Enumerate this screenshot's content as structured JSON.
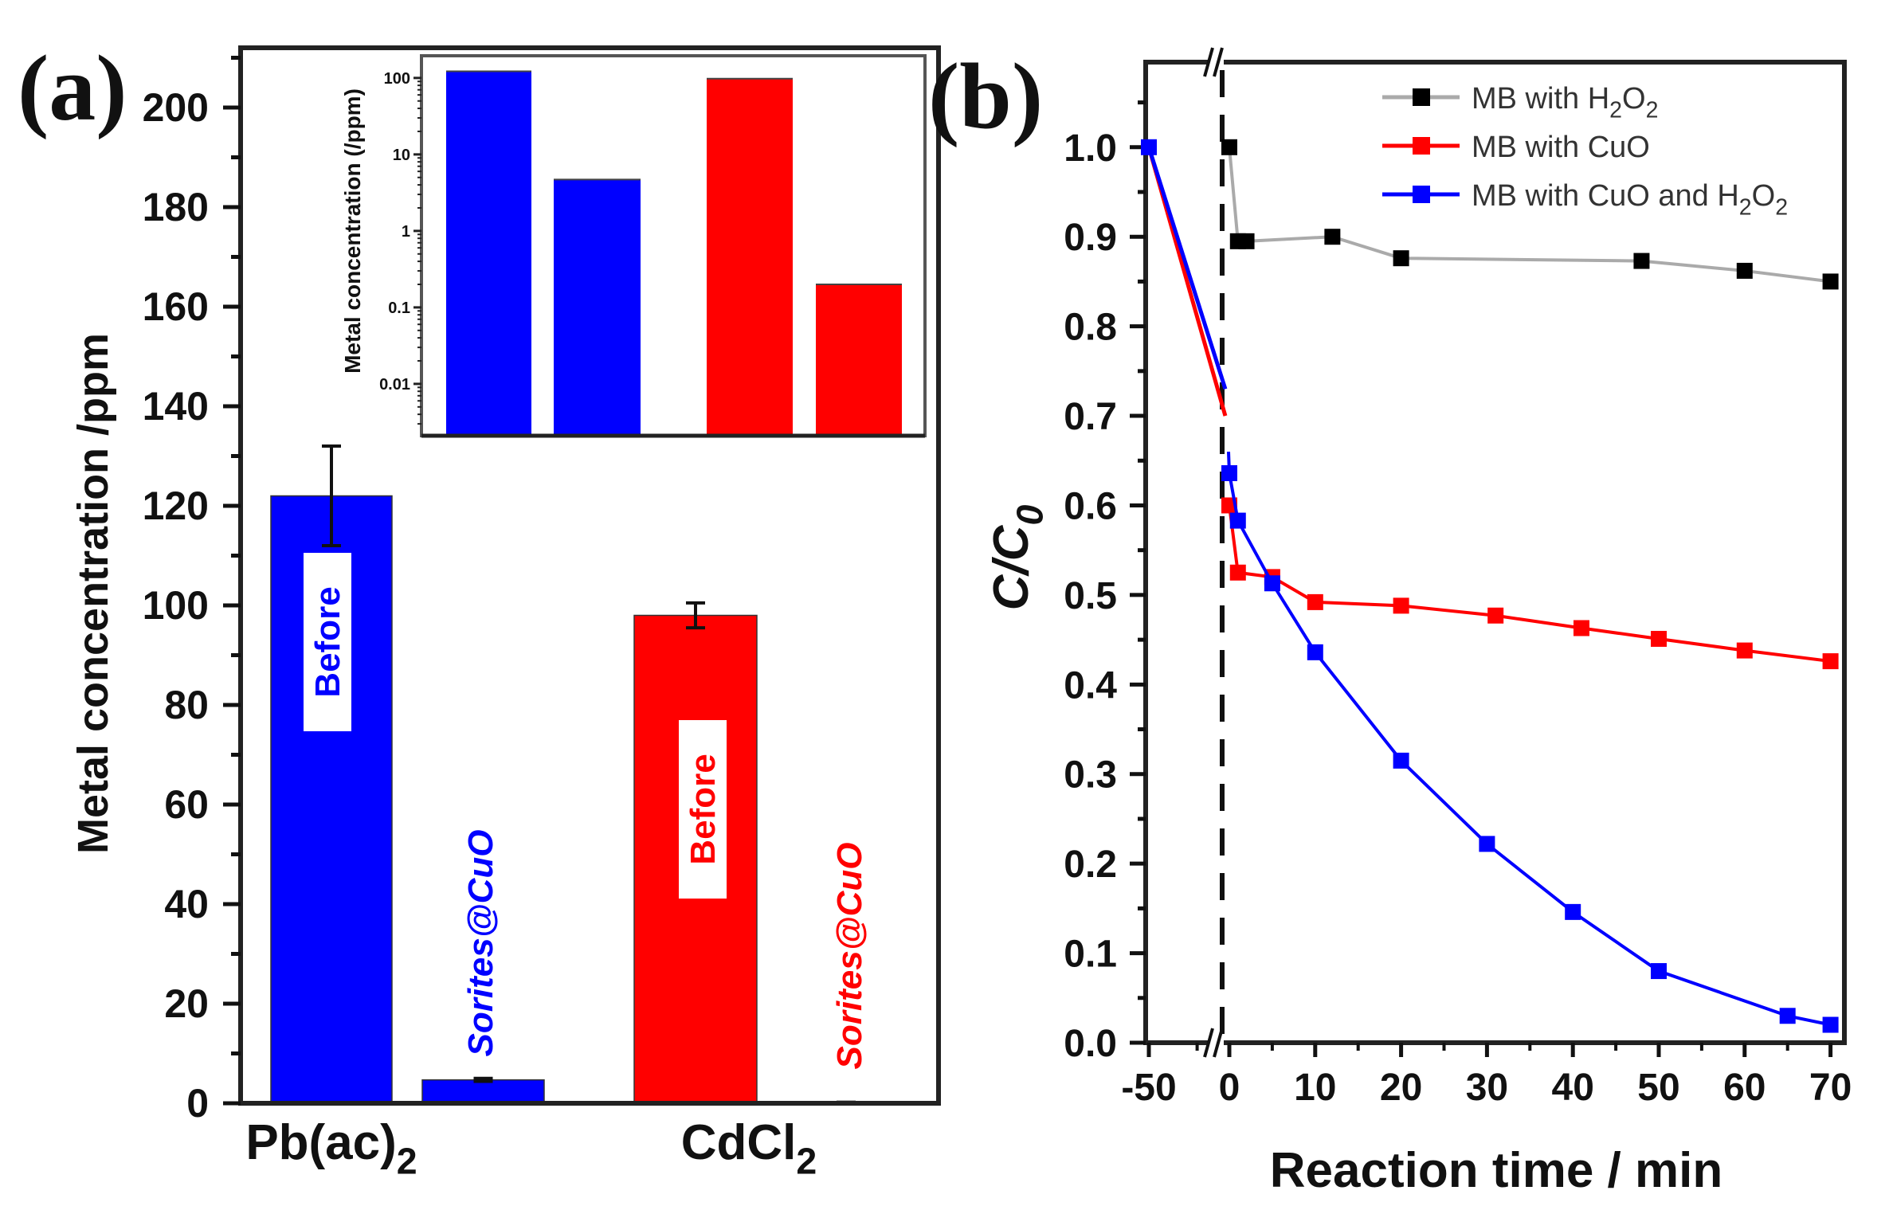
{
  "chart_data": [
    {
      "panel_label": "(a)",
      "type": "bar",
      "ylabel": "Metal concentration /ppm",
      "ylim": [
        0,
        212
      ],
      "yticks": [
        0,
        20,
        40,
        60,
        80,
        100,
        120,
        140,
        160,
        180,
        200
      ],
      "categories": [
        {
          "parts": [
            {
              "t": "Pb(ac)"
            },
            {
              "t": "2",
              "sub": true
            }
          ]
        },
        {
          "parts": [
            {
              "t": "CdCl"
            },
            {
              "t": "2",
              "sub": true
            }
          ]
        }
      ],
      "bars": [
        {
          "group": 0,
          "label": "Before",
          "value": 122,
          "error": 10,
          "color": "#0000ff",
          "label_style": "boxed"
        },
        {
          "group": 0,
          "label": "Sorites@CuO",
          "value": 4.7,
          "error": 0.3,
          "color": "#0000ff",
          "label_style": "italic"
        },
        {
          "group": 1,
          "label": "Before",
          "value": 98,
          "error": 2.5,
          "color": "#ff0000",
          "label_style": "boxed"
        },
        {
          "group": 1,
          "label": "Sorites@CuO",
          "value": 0.2,
          "error": 0.01,
          "color": "#ff0000",
          "label_style": "italic"
        }
      ],
      "inset": {
        "type": "bar",
        "yscale": "log",
        "ylabel": "Metal concentration (/ppm)",
        "ylim": [
          0.0021,
          195
        ],
        "yticks": [
          {
            "v": 0.01,
            "label": "0.01"
          },
          {
            "v": 0.1,
            "label": "0.1"
          },
          {
            "v": 1,
            "label": "1"
          },
          {
            "v": 10,
            "label": "10"
          },
          {
            "v": 100,
            "label": "100"
          }
        ]
      }
    },
    {
      "panel_label": "(b)",
      "type": "line",
      "xlabel": "Reaction time / min",
      "ylabel": {
        "parts": [
          {
            "t": "C/C"
          },
          {
            "t": "0",
            "sub": true
          }
        ]
      },
      "ylim": [
        0,
        1.095
      ],
      "yticks": [
        "0.0",
        "0.1",
        "0.2",
        "0.3",
        "0.4",
        "0.5",
        "0.6",
        "0.7",
        "0.8",
        "0.9",
        "1.0"
      ],
      "xticks": [
        "-50",
        "0",
        "10",
        "20",
        "30",
        "40",
        "50",
        "60",
        "70"
      ],
      "axis_break": "between -50 and 0",
      "dark_dashed_line_at": 0,
      "legend_position": "top-right",
      "series": [
        {
          "name": {
            "parts": [
              {
                "t": "MB with H"
              },
              {
                "t": "2",
                "sub": true
              },
              {
                "t": "O"
              },
              {
                "t": "2",
                "sub": true
              }
            ]
          },
          "line_color": "#aaaaaa",
          "marker_color": "#000000",
          "points": [
            [
              0,
              1.0
            ],
            [
              1,
              0.895
            ],
            [
              2,
              0.895
            ],
            [
              12,
              0.9
            ],
            [
              20,
              0.876
            ],
            [
              48,
              0.873
            ],
            [
              60,
              0.862
            ],
            [
              70,
              0.85
            ]
          ]
        },
        {
          "name": {
            "parts": [
              {
                "t": "MB with CuO"
              }
            ]
          },
          "line_color": "#ff0000",
          "marker_color": "#ff0000",
          "lead_in": [
            [
              -50,
              1.0
            ],
            [
              -2.5,
              0.7
            ]
          ],
          "points": [
            [
              0,
              0.6
            ],
            [
              1,
              0.525
            ],
            [
              5,
              0.52
            ],
            [
              10,
              0.492
            ],
            [
              20,
              0.488
            ],
            [
              31,
              0.477
            ],
            [
              41,
              0.463
            ],
            [
              50,
              0.451
            ],
            [
              60,
              0.438
            ],
            [
              70,
              0.426
            ]
          ]
        },
        {
          "name": {
            "parts": [
              {
                "t": "MB with CuO and H"
              },
              {
                "t": "2",
                "sub": true
              },
              {
                "t": "O"
              },
              {
                "t": "2",
                "sub": true
              }
            ]
          },
          "line_color": "#0000ff",
          "marker_color": "#0000ff",
          "lead_in": [
            [
              -50,
              1.0
            ],
            [
              -2.5,
              0.73
            ]
          ],
          "lead_marker": [
            -50,
            1.0
          ],
          "points": [
            [
              -0.5,
              0.66
            ],
            [
              0,
              0.636
            ],
            [
              1,
              0.583
            ],
            [
              5,
              0.513
            ],
            [
              10,
              0.436
            ],
            [
              20,
              0.315
            ],
            [
              30,
              0.222
            ],
            [
              40,
              0.146
            ],
            [
              50,
              0.08
            ],
            [
              65,
              0.03
            ],
            [
              70,
              0.02
            ]
          ]
        }
      ]
    }
  ]
}
